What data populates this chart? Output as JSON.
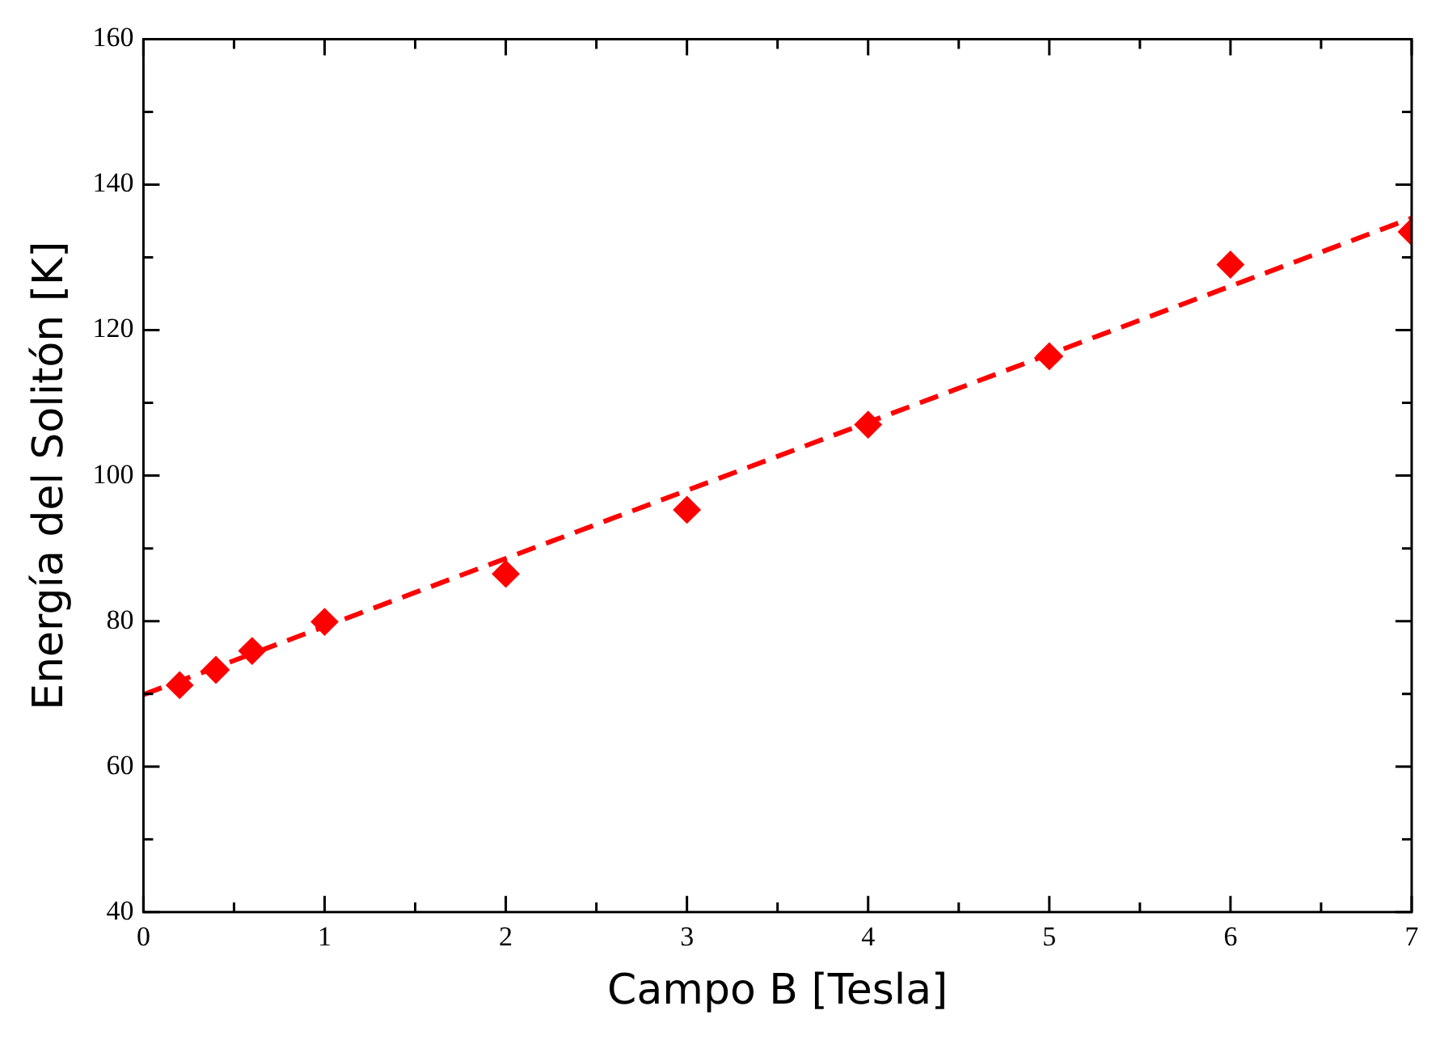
{
  "chart_data": {
    "type": "scatter",
    "xlabel": "Campo B [Tesla]",
    "ylabel": "Energía del Solitón [K]",
    "xlim": [
      0,
      7
    ],
    "ylim": [
      40,
      160
    ],
    "xticks": [
      0,
      {
        "value": 0.5,
        "label": null
      },
      1,
      {
        "value": 1.5,
        "label": null
      },
      2,
      {
        "value": 2.5,
        "label": null
      },
      3,
      {
        "value": 3.5,
        "label": null
      },
      4,
      {
        "value": 4.5,
        "label": null
      },
      5,
      {
        "value": 5.5,
        "label": null
      },
      6,
      {
        "value": 6.5,
        "label": null
      },
      7
    ],
    "yticks": [
      40,
      {
        "value": 50,
        "label": null
      },
      60,
      {
        "value": 70,
        "label": null
      },
      80,
      {
        "value": 90,
        "label": null
      },
      100,
      {
        "value": 110,
        "label": null
      },
      120,
      {
        "value": 130,
        "label": null
      },
      140,
      {
        "value": 150,
        "label": null
      },
      160
    ],
    "legend": false,
    "series": [
      {
        "type": "scatter",
        "color": "#ff0000",
        "marker": "diamond",
        "x": [
          0.2,
          0.4,
          0.6,
          1,
          2,
          3,
          4,
          5,
          6,
          7
        ],
        "values": [
          71.2,
          73.3,
          75.9,
          79.9,
          86.5,
          95.3,
          107.0,
          116.4,
          129.0,
          133.5
        ]
      },
      {
        "type": "line",
        "color": "#ff0000",
        "marker": "none",
        "line_style": "dashed",
        "x": [
          0,
          7
        ],
        "values": [
          69.9,
          135.4
        ]
      }
    ]
  }
}
